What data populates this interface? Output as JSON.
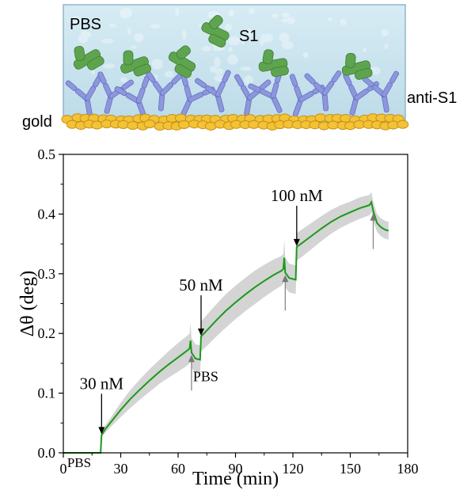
{
  "schematic": {
    "buffer_label": "PBS",
    "analyte_label": "S1",
    "antibody_label": "anti-S1",
    "surface_label": "gold",
    "colors": {
      "liquid": "#cfe6f0",
      "liquid_border": "#8fb6c8",
      "antibody": "#8e96dc",
      "antigen": "#5ea44e",
      "gold": "#f3c235",
      "gold_edge": "#c7921a"
    }
  },
  "chart_data": {
    "type": "line",
    "xlabel": "Time (min)",
    "ylabel": "Δθ (deg)",
    "xlim": [
      0,
      180
    ],
    "ylim": [
      0,
      0.5
    ],
    "xticks": [
      0,
      30,
      60,
      90,
      120,
      150,
      180
    ],
    "yticks": [
      0.0,
      0.1,
      0.2,
      0.3,
      0.4,
      0.5
    ],
    "xtick_labels": [
      "0",
      "30",
      "60",
      "90",
      "120",
      "150",
      "180"
    ],
    "ytick_labels": [
      "0.0",
      "0.1",
      "0.2",
      "0.3",
      "0.4",
      "0.5"
    ],
    "baseline": 0,
    "line_color": "#1a9a1a",
    "band_color": "#d4d4d4",
    "series": [
      {
        "x": [
          0,
          19.5,
          20,
          22,
          25,
          30,
          35,
          40,
          45,
          50,
          55,
          60,
          65,
          66,
          66.5,
          67,
          69,
          71.5,
          72,
          75,
          80,
          85,
          90,
          95,
          100,
          105,
          110,
          114,
          115,
          115.5,
          116,
          118,
          121.5,
          122,
          125,
          130,
          135,
          140,
          145,
          150,
          155,
          160,
          161,
          162,
          164,
          166,
          168,
          170
        ],
        "y": [
          0,
          0,
          0.03,
          0.04,
          0.052,
          0.072,
          0.09,
          0.106,
          0.121,
          0.135,
          0.148,
          0.16,
          0.172,
          0.175,
          0.188,
          0.168,
          0.158,
          0.156,
          0.195,
          0.205,
          0.222,
          0.238,
          0.252,
          0.265,
          0.277,
          0.288,
          0.298,
          0.305,
          0.308,
          0.327,
          0.302,
          0.293,
          0.29,
          0.345,
          0.352,
          0.364,
          0.376,
          0.387,
          0.396,
          0.403,
          0.41,
          0.415,
          0.42,
          0.405,
          0.385,
          0.378,
          0.374,
          0.372
        ],
        "band": [
          0,
          0,
          0.004,
          0.006,
          0.008,
          0.012,
          0.015,
          0.017,
          0.019,
          0.02,
          0.022,
          0.024,
          0.025,
          0.025,
          0.03,
          0.025,
          0.024,
          0.024,
          0.025,
          0.026,
          0.027,
          0.028,
          0.028,
          0.028,
          0.028,
          0.027,
          0.026,
          0.025,
          0.025,
          0.03,
          0.025,
          0.024,
          0.024,
          0.023,
          0.023,
          0.022,
          0.021,
          0.02,
          0.019,
          0.018,
          0.018,
          0.017,
          0.017,
          0.016,
          0.015,
          0.015,
          0.015,
          0.015
        ]
      }
    ],
    "annotations": [
      {
        "text": "30 nM",
        "x": 20,
        "y": 0.03,
        "direction": "down"
      },
      {
        "text": "50 nM",
        "x": 72,
        "y": 0.195,
        "direction": "down"
      },
      {
        "text": "100 nM",
        "x": 122,
        "y": 0.345,
        "direction": "down"
      },
      {
        "text": "PBS",
        "x": 67,
        "y": 0.168,
        "direction": "up"
      },
      {
        "text": "",
        "x": 116,
        "y": 0.302,
        "direction": "up"
      },
      {
        "text": "",
        "x": 162,
        "y": 0.405,
        "direction": "up"
      },
      {
        "text": "PBS",
        "x": 2,
        "y": 0,
        "direction": "none"
      }
    ]
  }
}
